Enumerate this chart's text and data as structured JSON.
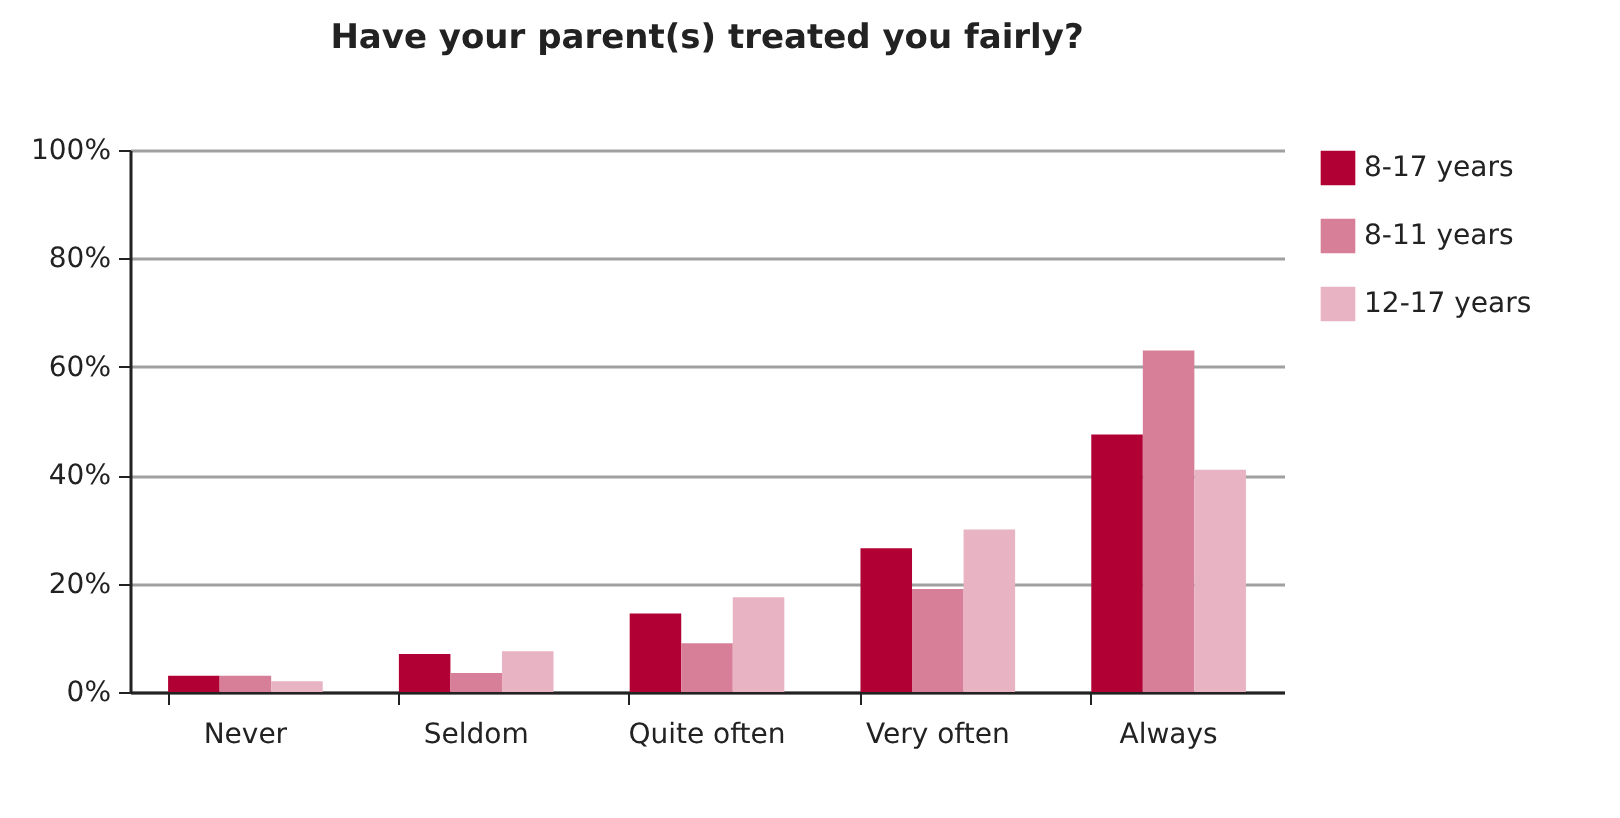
{
  "chart_data": {
    "type": "bar",
    "title": "Have your parent(s) treated you fairly?",
    "categories": [
      "Never",
      "Seldom",
      "Quite often",
      "Very often",
      "Always"
    ],
    "series": [
      {
        "name": "8-17 years",
        "color": "#b00034",
        "values": [
          3,
          7,
          14.5,
          26.5,
          47.5
        ]
      },
      {
        "name": "8-11 years",
        "color": "#d77f98",
        "values": [
          3,
          3.5,
          9,
          19,
          63
        ]
      },
      {
        "name": "12-17 years",
        "color": "#e8b3c3",
        "values": [
          2,
          7.5,
          17.5,
          30,
          41
        ]
      }
    ],
    "ylim": [
      0,
      100
    ],
    "yticks": [
      {
        "value": 0,
        "label": "0%"
      },
      {
        "value": 20,
        "label": "20%"
      },
      {
        "value": 40,
        "label": "40%"
      },
      {
        "value": 60,
        "label": "60%"
      },
      {
        "value": 80,
        "label": "80%"
      },
      {
        "value": 100,
        "label": "100%"
      }
    ],
    "grid": "y",
    "legend": "right"
  }
}
